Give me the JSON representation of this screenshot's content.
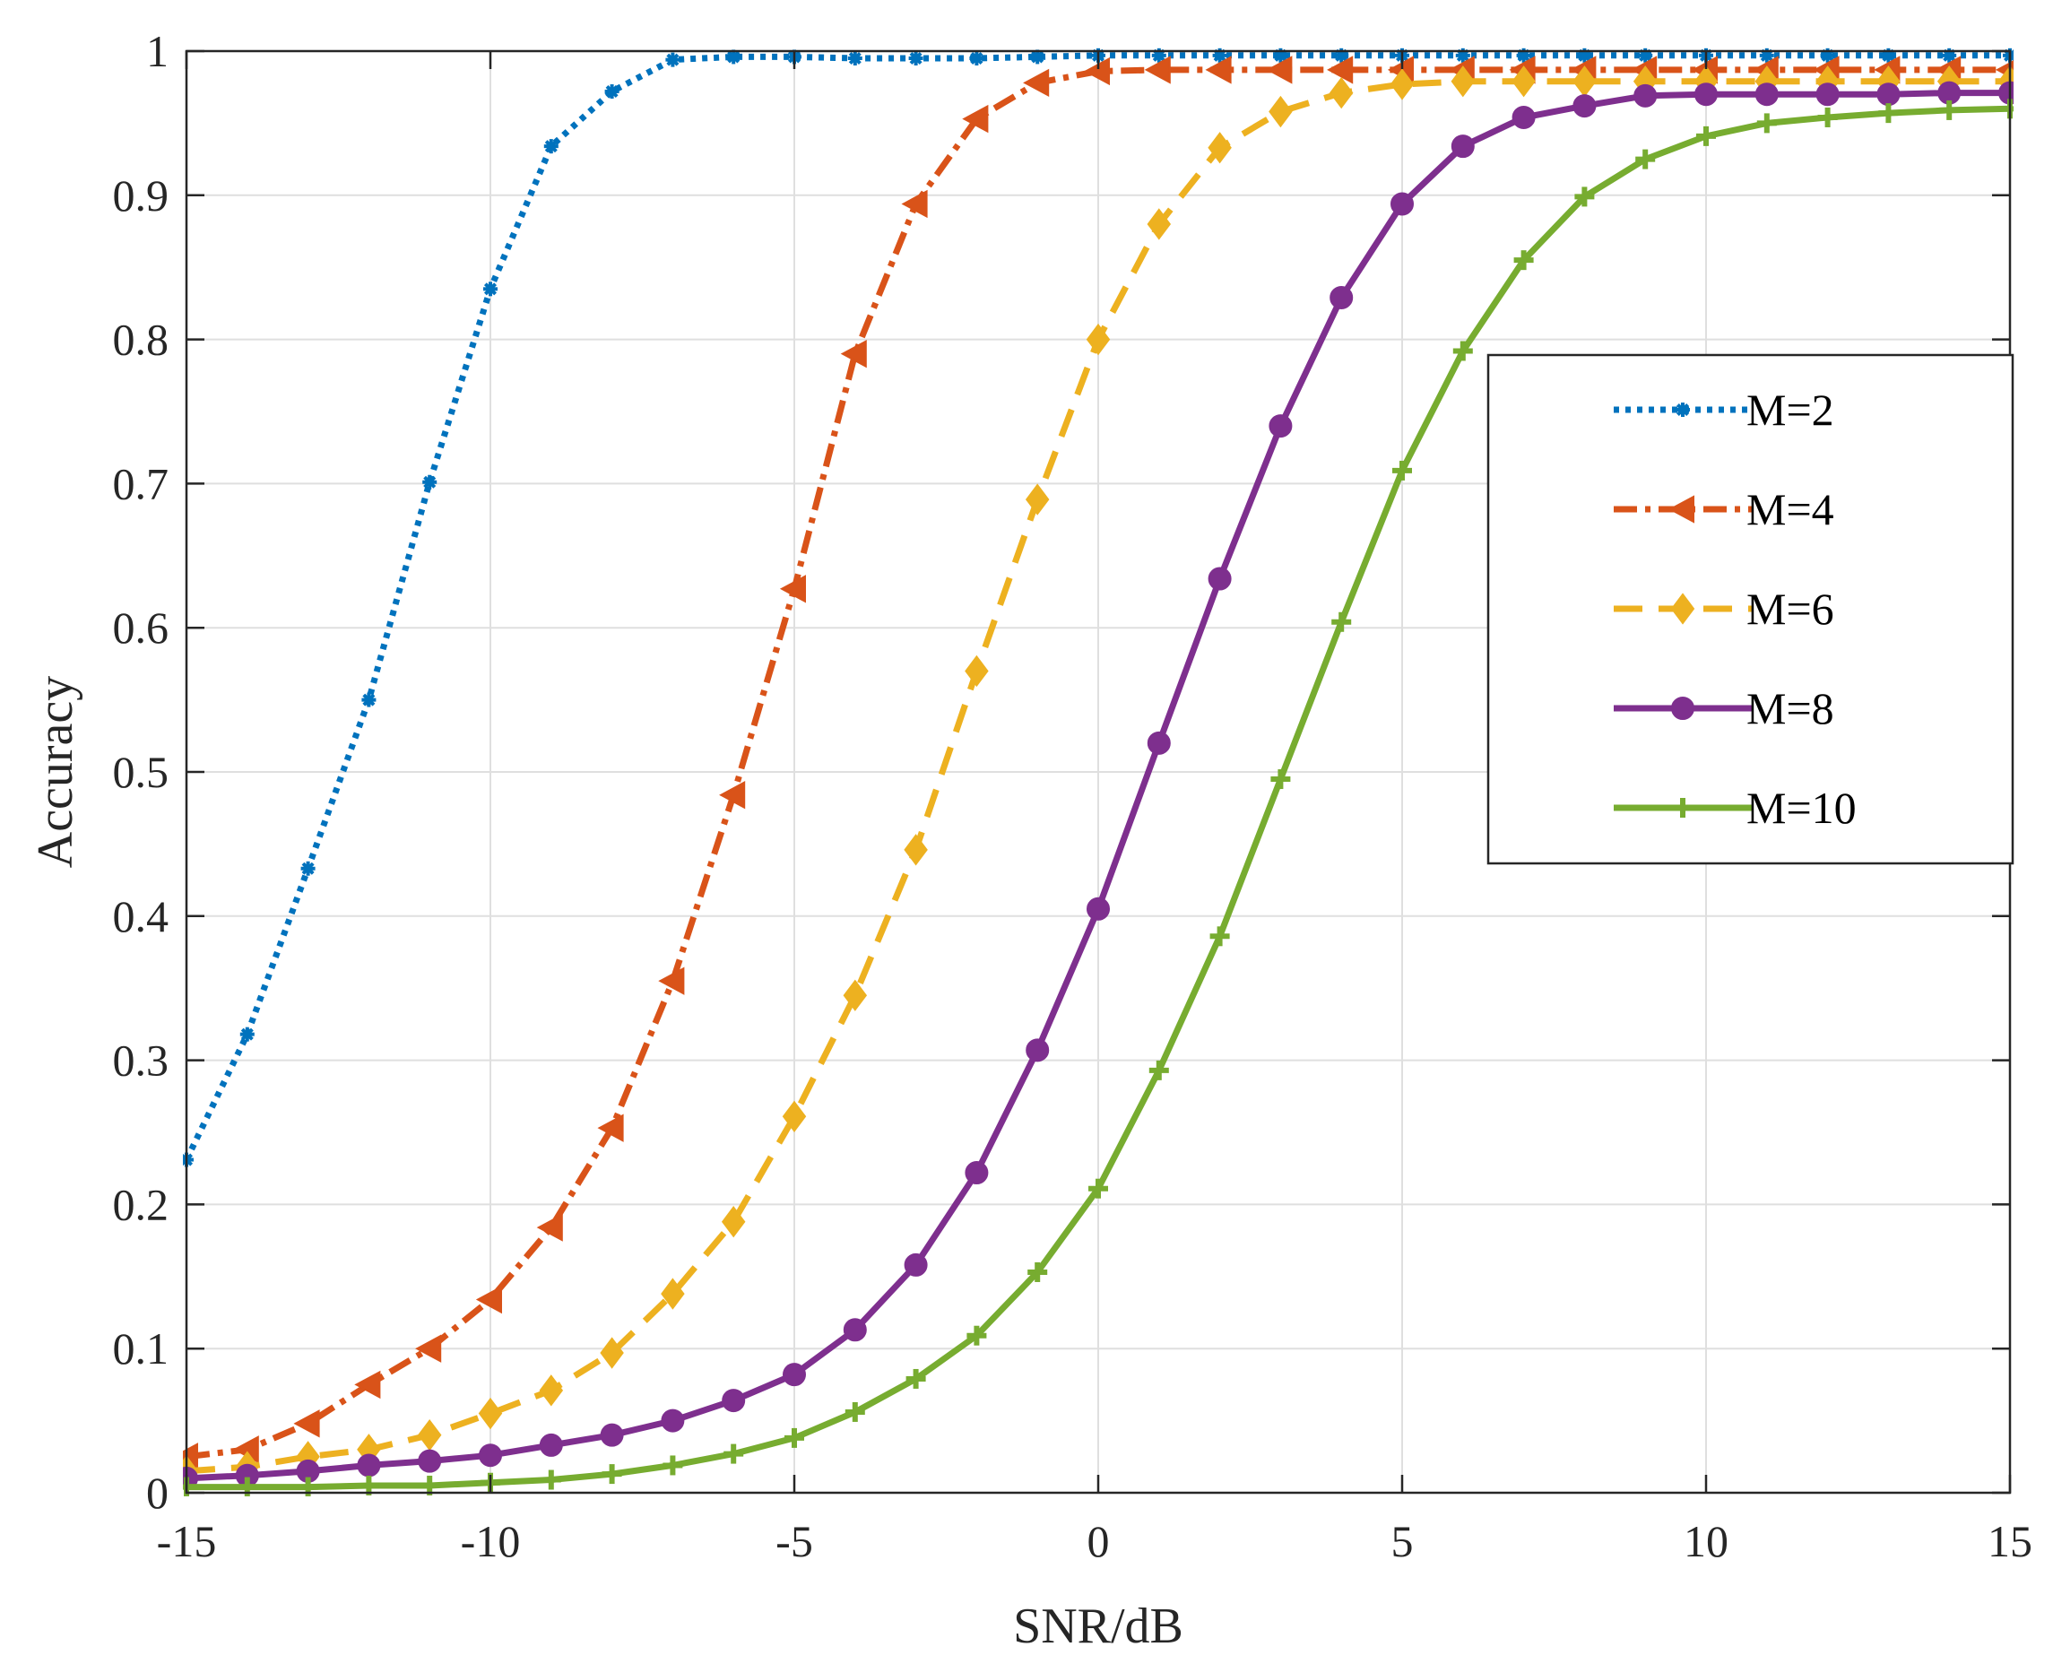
{
  "chart_data": {
    "type": "line",
    "title": "",
    "xlabel": "SNR/dB",
    "ylabel": "Accuracy",
    "xlim": [
      -15,
      15
    ],
    "ylim": [
      0,
      1
    ],
    "grid": true,
    "legend_position": "right",
    "x_ticks": [
      {
        "value": -15,
        "label": "-15"
      },
      {
        "value": -10,
        "label": "-10"
      },
      {
        "value": -5,
        "label": "-5"
      },
      {
        "value": 0,
        "label": "0"
      },
      {
        "value": 5,
        "label": "5"
      },
      {
        "value": 10,
        "label": "10"
      },
      {
        "value": 15,
        "label": "15"
      }
    ],
    "y_ticks": [
      {
        "value": 0,
        "label": "0"
      },
      {
        "value": 0.1,
        "label": "0.1"
      },
      {
        "value": 0.2,
        "label": "0.2"
      },
      {
        "value": 0.3,
        "label": "0.3"
      },
      {
        "value": 0.4,
        "label": "0.4"
      },
      {
        "value": 0.5,
        "label": "0.5"
      },
      {
        "value": 0.6,
        "label": "0.6"
      },
      {
        "value": 0.7,
        "label": "0.7"
      },
      {
        "value": 0.8,
        "label": "0.8"
      },
      {
        "value": 0.9,
        "label": "0.9"
      },
      {
        "value": 1,
        "label": "1"
      }
    ],
    "x": [
      -15,
      -14,
      -13,
      -12,
      -11,
      -10,
      -9,
      -8,
      -7,
      -6,
      -5,
      -4,
      -3,
      -2,
      -1,
      0,
      1,
      2,
      3,
      4,
      5,
      6,
      7,
      8,
      9,
      10,
      11,
      12,
      13,
      14,
      15
    ],
    "series": [
      {
        "name": "M=2",
        "color": "#0072BD",
        "dash": "dotted",
        "marker": "asterisk",
        "values": [
          0.231,
          0.318,
          0.433,
          0.55,
          0.701,
          0.835,
          0.934,
          0.972,
          0.994,
          0.996,
          0.996,
          0.995,
          0.995,
          0.995,
          0.996,
          0.997,
          0.997,
          0.997,
          0.997,
          0.997,
          0.997,
          0.997,
          0.997,
          0.997,
          0.997,
          0.997,
          0.997,
          0.997,
          0.997,
          0.997,
          0.997
        ]
      },
      {
        "name": "M=4",
        "color": "#D95319",
        "dash": "dashdot",
        "marker": "triangle-left",
        "values": [
          0.025,
          0.03,
          0.048,
          0.075,
          0.1,
          0.134,
          0.184,
          0.253,
          0.355,
          0.484,
          0.627,
          0.79,
          0.894,
          0.953,
          0.978,
          0.986,
          0.987,
          0.987,
          0.987,
          0.987,
          0.987,
          0.987,
          0.987,
          0.987,
          0.987,
          0.987,
          0.987,
          0.987,
          0.987,
          0.987,
          0.987
        ]
      },
      {
        "name": "M=6",
        "color": "#EDB120",
        "dash": "dashed",
        "marker": "diamond",
        "values": [
          0.015,
          0.018,
          0.025,
          0.03,
          0.04,
          0.055,
          0.071,
          0.097,
          0.138,
          0.188,
          0.261,
          0.345,
          0.446,
          0.57,
          0.689,
          0.8,
          0.88,
          0.933,
          0.958,
          0.971,
          0.977,
          0.979,
          0.979,
          0.979,
          0.979,
          0.979,
          0.979,
          0.979,
          0.979,
          0.979,
          0.979
        ]
      },
      {
        "name": "M=8",
        "color": "#7E2F8E",
        "dash": "solid",
        "marker": "circle",
        "values": [
          0.01,
          0.012,
          0.015,
          0.019,
          0.022,
          0.026,
          0.033,
          0.04,
          0.05,
          0.064,
          0.082,
          0.113,
          0.158,
          0.222,
          0.307,
          0.405,
          0.52,
          0.634,
          0.74,
          0.829,
          0.894,
          0.934,
          0.954,
          0.962,
          0.969,
          0.97,
          0.97,
          0.97,
          0.97,
          0.971,
          0.971
        ]
      },
      {
        "name": "M=10",
        "color": "#77AC30",
        "dash": "solid",
        "marker": "plus",
        "values": [
          0.004,
          0.004,
          0.004,
          0.005,
          0.005,
          0.007,
          0.009,
          0.013,
          0.019,
          0.027,
          0.038,
          0.056,
          0.079,
          0.109,
          0.153,
          0.211,
          0.293,
          0.386,
          0.495,
          0.604,
          0.709,
          0.792,
          0.855,
          0.899,
          0.925,
          0.941,
          0.95,
          0.954,
          0.957,
          0.959,
          0.96
        ]
      }
    ]
  }
}
